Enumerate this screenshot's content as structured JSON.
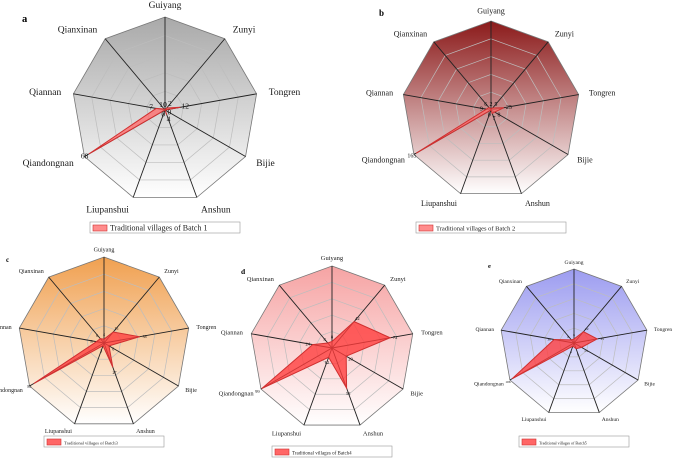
{
  "figure": {
    "axes": [
      "Guiyang",
      "Zunyi",
      "Tongren",
      "Bijie",
      "Anshun",
      "Liupanshui",
      "Qiandongnan",
      "Qiannan",
      "Qianxinan"
    ]
  },
  "chart_data": [
    {
      "type": "radar",
      "panel": "a",
      "legend": "Traditional villages of Batch 1",
      "gradient": [
        "#ffffff",
        "#a9a9a9"
      ],
      "series_color": "#ff6b6b",
      "axes": [
        "Guiyang",
        "Zunyi",
        "Tongren",
        "Bijie",
        "Anshun",
        "Liupanshui",
        "Qiandongnan",
        "Qiannan",
        "Qianxinan"
      ],
      "values": [
        0,
        2,
        12,
        0,
        4,
        0,
        68,
        7,
        1
      ],
      "value_labels": [
        "0",
        "2",
        "12",
        "0",
        "4",
        "0",
        "68",
        "7",
        "1"
      ],
      "scale_max": 72
    },
    {
      "type": "radar",
      "panel": "b",
      "legend": "Traditional villages of Batch 2",
      "gradient": [
        "#ffffff",
        "#8b1a1a"
      ],
      "series_color": "#ff6b6b",
      "axes": [
        "Guiyang",
        "Zunyi",
        "Tongren",
        "Bijie",
        "Anshun",
        "Liupanshui",
        "Qiandongnan",
        "Qiannan",
        "Qianxinan"
      ],
      "values": [
        2,
        5,
        25,
        8,
        7,
        0,
        165,
        9,
        6
      ],
      "value_labels": [
        "2",
        "5",
        "25",
        "8",
        "7",
        "0",
        "165",
        "9",
        "6"
      ],
      "scale_max": 170
    },
    {
      "type": "radar",
      "panel": "c",
      "legend": "Traditional villages of Batch3",
      "gradient": [
        "#ffffff",
        "#f0a050"
      ],
      "series_color": "#ff3b3b",
      "axes": [
        "Guiyang",
        "Zunyi",
        "Tongren",
        "Bijie",
        "Anshun",
        "Liupanshui",
        "Qiandongnan",
        "Qiannan",
        "Qianxinan"
      ],
      "values": [
        4,
        15,
        38,
        6,
        27,
        3,
        85,
        8,
        6
      ],
      "value_labels": [
        "4",
        "15",
        "38",
        "6",
        "27",
        "3",
        "85",
        "8",
        "6"
      ],
      "scale_max": 90
    },
    {
      "type": "radar",
      "panel": "d",
      "legend": "Traditional villages of Batch4",
      "gradient": [
        "#ffffff",
        "#f6a3a3"
      ],
      "series_color": "#ff3b3b",
      "axes": [
        "Guiyang",
        "Zunyi",
        "Tongren",
        "Bijie",
        "Anshun",
        "Liupanshui",
        "Qiandongnan",
        "Qiannan",
        "Qianxinan"
      ],
      "values": [
        8,
        42,
        72,
        20,
        52,
        12,
        99,
        24,
        8
      ],
      "value_labels": [
        "8",
        "42",
        "72",
        "20",
        "52",
        "12",
        "99",
        "24",
        "8"
      ],
      "scale_max": 100
    },
    {
      "type": "radar",
      "panel": "e",
      "legend": "Traditional villages of Batch5",
      "gradient": [
        "#ffffff",
        "#9c9cf0"
      ],
      "series_color": "#ff3b3b",
      "axes": [
        "Guiyang",
        "Zunyi",
        "Tongren",
        "Bijie",
        "Anshun",
        "Liupanshui",
        "Qiandongnan",
        "Qiannan",
        "Qianxinan"
      ],
      "values": [
        6,
        22,
        35,
        13,
        9,
        5,
        106,
        30,
        6
      ],
      "value_labels": [
        "6",
        "22",
        "35",
        "13",
        "9",
        "5",
        "106",
        "30",
        "6"
      ],
      "scale_max": 110
    }
  ]
}
